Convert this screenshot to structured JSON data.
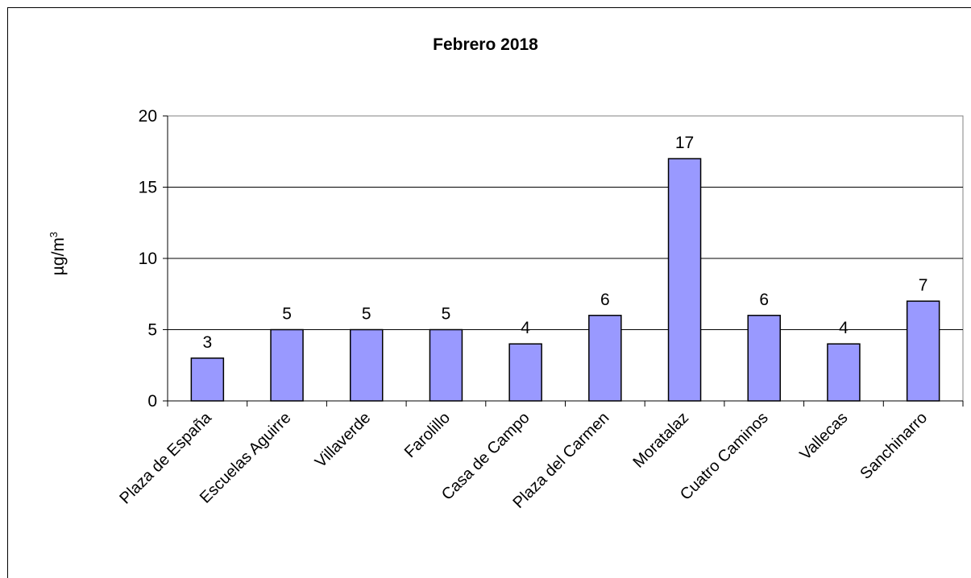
{
  "chart_data": {
    "type": "bar",
    "title": "Febrero 2018",
    "ylabel_base": "µg/m",
    "ylabel_sup": "3",
    "xlabel": "",
    "ylim": [
      0,
      20
    ],
    "yticks": [
      0,
      5,
      10,
      15,
      20
    ],
    "grid": true,
    "categories": [
      "Plaza de España",
      "Escuelas Aguirre",
      "Villaverde",
      "Farolillo",
      "Casa de Campo",
      "Plaza del Carmen",
      "Moratalaz",
      "Cuatro Caminos",
      "Vallecas",
      "Sanchinarro"
    ],
    "values": [
      3,
      5,
      5,
      5,
      4,
      6,
      17,
      6,
      4,
      7
    ],
    "data_labels": [
      "3",
      "5",
      "5",
      "5",
      "4",
      "6",
      "17",
      "6",
      "4",
      "7"
    ],
    "bar_color": "#9999ff",
    "bar_border": "#000000"
  }
}
